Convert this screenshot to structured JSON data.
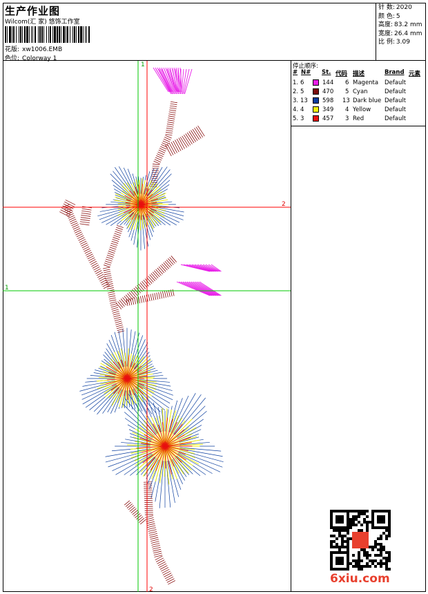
{
  "header": {
    "title": "生产作业图",
    "company": "Wilcom(汇 家) 悠饰工作室",
    "design_label": "花版:",
    "design_value": "xw1006.EMB",
    "colorway_label": "色位:",
    "colorway_value": "Colorway 1"
  },
  "stats": [
    {
      "label": "针 数:",
      "value": "2020"
    },
    {
      "label": "颜 色:",
      "value": "5"
    },
    {
      "label": "高度:",
      "value": "83.2 mm"
    },
    {
      "label": "宽度:",
      "value": "26.4 mm"
    },
    {
      "label": "比 例:",
      "value": "3.09"
    }
  ],
  "stop_sequence": {
    "title": "停止顺序:",
    "columns": [
      "#",
      "N#",
      "St.",
      "代码",
      "描述",
      "Brand",
      "元素"
    ],
    "rows": [
      {
        "idx": "1.",
        "n": "6",
        "color": "#e81ee8",
        "st": "144",
        "code": "6",
        "desc": "Magenta",
        "brand": "Default"
      },
      {
        "idx": "2.",
        "n": "5",
        "color": "#7a0c0c",
        "st": "470",
        "code": "5",
        "desc": "Cyan",
        "brand": "Default"
      },
      {
        "idx": "3.",
        "n": "13",
        "color": "#0a3d9e",
        "st": "598",
        "code": "13",
        "desc": "Dark blue",
        "brand": "Default"
      },
      {
        "idx": "4.",
        "n": "4",
        "color": "#f2f20c",
        "st": "349",
        "code": "4",
        "desc": "Yellow",
        "brand": "Default"
      },
      {
        "idx": "5.",
        "n": "3",
        "color": "#e81010",
        "st": "457",
        "code": "3",
        "desc": "Red",
        "brand": "Default"
      }
    ]
  },
  "guides": {
    "v_top": "1",
    "v_bottom": "2",
    "h_left": "1",
    "h_right": "2"
  },
  "footer": {
    "site": "6xiu.com"
  }
}
